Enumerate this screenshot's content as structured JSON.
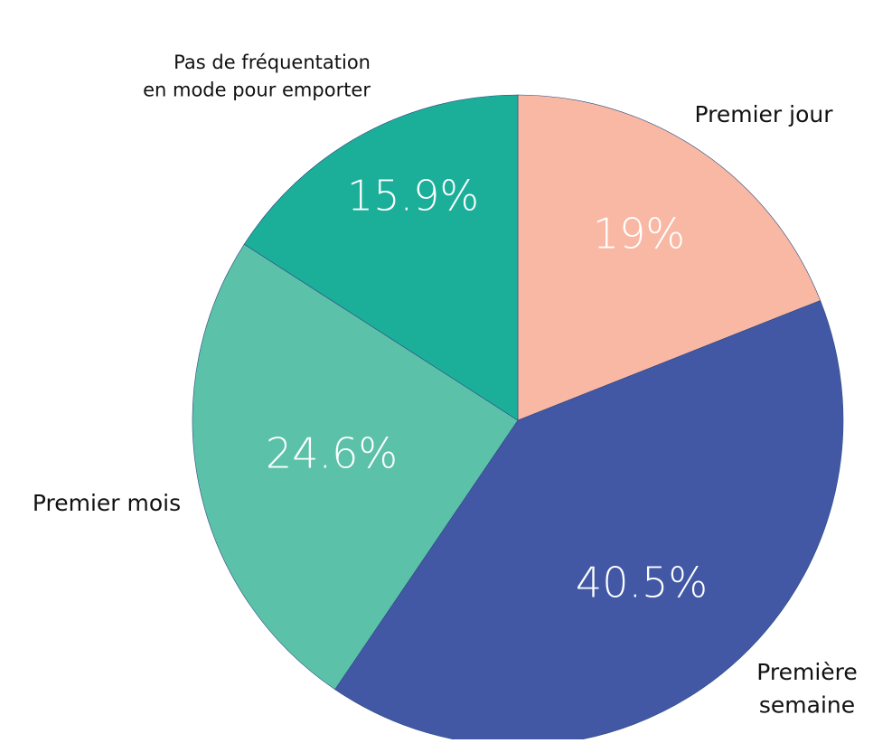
{
  "chart_data": {
    "type": "pie",
    "categories": [
      "Premier jour",
      "Première\nsemaine",
      "Premier mois",
      "Pas de fréquentation\nen mode pour emporter"
    ],
    "values": [
      19,
      40.5,
      24.6,
      15.9
    ],
    "value_labels": [
      "19%",
      "40.5%",
      "24.6%",
      "15.9%"
    ],
    "colors": [
      "#f8b8a4",
      "#4258a5",
      "#5cc1a9",
      "#1baf9a"
    ]
  }
}
